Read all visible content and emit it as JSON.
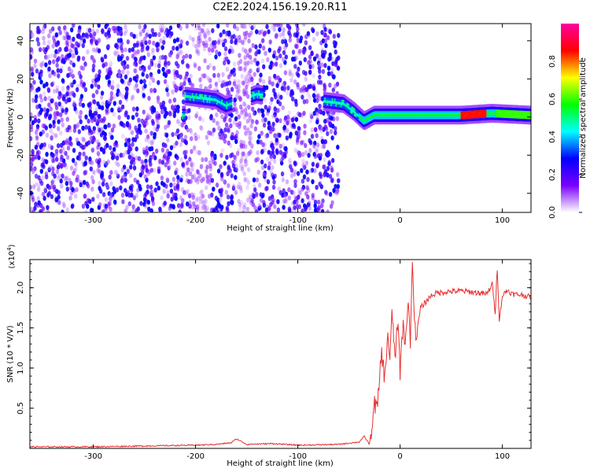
{
  "title": "C2E2.2024.156.19.20.R11",
  "chart_data": [
    {
      "type": "heatmap",
      "xlabel": "Height of straight line (km)",
      "ylabel": "Frequency (Hz)",
      "xlim": [
        -362,
        128
      ],
      "ylim": [
        -50,
        49
      ],
      "xticks": [
        -300,
        -200,
        -100,
        0,
        100
      ],
      "xtick_labels": [
        "-300",
        "-200",
        "-100",
        "0",
        "100"
      ],
      "yticks": [
        40,
        20,
        0,
        -20,
        -40
      ],
      "ytick_labels": [
        "40",
        "20",
        "0",
        "-20",
        "-40"
      ],
      "colorbar": {
        "label": "Normalized spectral amplitude",
        "range": [
          0,
          1
        ],
        "ticks": [
          0.0,
          0.2,
          0.4,
          0.6,
          0.8
        ],
        "tick_labels": [
          "0.0",
          "0.2",
          "0.4",
          "0.6",
          "0.8"
        ],
        "colors": [
          "#ffffff",
          "#7a00ff",
          "#0000ff",
          "#00ffff",
          "#00ff00",
          "#ffff00",
          "#ff0000",
          "#ff00a0"
        ]
      },
      "noise_region": {
        "x": [
          -362,
          -60
        ],
        "freq": [
          -50,
          49
        ]
      },
      "signal_track": [
        {
          "x": -210,
          "y": 11
        },
        {
          "x": -195,
          "y": 10
        },
        {
          "x": -180,
          "y": 9
        },
        {
          "x": -170,
          "y": 6
        },
        {
          "x": -140,
          "y": 12
        },
        {
          "x": -70,
          "y": 8
        },
        {
          "x": -55,
          "y": 7
        },
        {
          "x": -45,
          "y": 3
        },
        {
          "x": -35,
          "y": -2
        },
        {
          "x": -25,
          "y": 1
        },
        {
          "x": 0,
          "y": 1
        },
        {
          "x": 60,
          "y": 1
        },
        {
          "x": 90,
          "y": 2
        },
        {
          "x": 128,
          "y": 1
        }
      ],
      "grid": false
    },
    {
      "type": "line",
      "xlabel": "Height of straight line (km)",
      "ylabel": "SNR (10 * V/V)",
      "y_scale_label": "(x10",
      "y_scale_exponent": "4",
      "y_scale_suffix": ")",
      "xlim": [
        -362,
        128
      ],
      "ylim": [
        0,
        2.35
      ],
      "xticks": [
        -300,
        -200,
        -100,
        0,
        100
      ],
      "xtick_labels": [
        "-300",
        "-200",
        "-100",
        "0",
        "100"
      ],
      "yticks": [
        0.5,
        1.0,
        1.5,
        2.0
      ],
      "ytick_labels": [
        "0.5",
        "1.0",
        "1.5",
        "2.0"
      ],
      "series": [
        {
          "color": "#e83030",
          "x": [
            -362,
            -300,
            -250,
            -200,
            -180,
            -165,
            -160,
            -150,
            -125,
            -100,
            -60,
            -40,
            -35,
            -30,
            -27,
            -25,
            -22,
            -20,
            -18,
            -15,
            -12,
            -10,
            -8,
            -5,
            -2,
            0,
            3,
            5,
            8,
            10,
            12,
            14,
            16,
            20,
            25,
            30,
            35,
            45,
            60,
            75,
            85,
            90,
            93,
            95,
            97,
            100,
            105,
            110,
            120,
            128
          ],
          "y": [
            0.02,
            0.02,
            0.03,
            0.04,
            0.05,
            0.07,
            0.12,
            0.05,
            0.06,
            0.04,
            0.05,
            0.08,
            0.15,
            0.05,
            0.35,
            0.55,
            0.5,
            0.9,
            1.2,
            0.85,
            1.45,
            1.05,
            1.7,
            1.15,
            1.55,
            0.95,
            1.6,
            1.25,
            1.85,
            1.35,
            2.35,
            1.6,
            1.4,
            1.75,
            1.82,
            1.9,
            1.93,
            1.95,
            1.96,
            1.94,
            1.92,
            2.05,
            1.7,
            2.25,
            1.6,
            1.9,
            1.97,
            1.92,
            1.91,
            1.88
          ]
        }
      ],
      "grid": false
    }
  ]
}
